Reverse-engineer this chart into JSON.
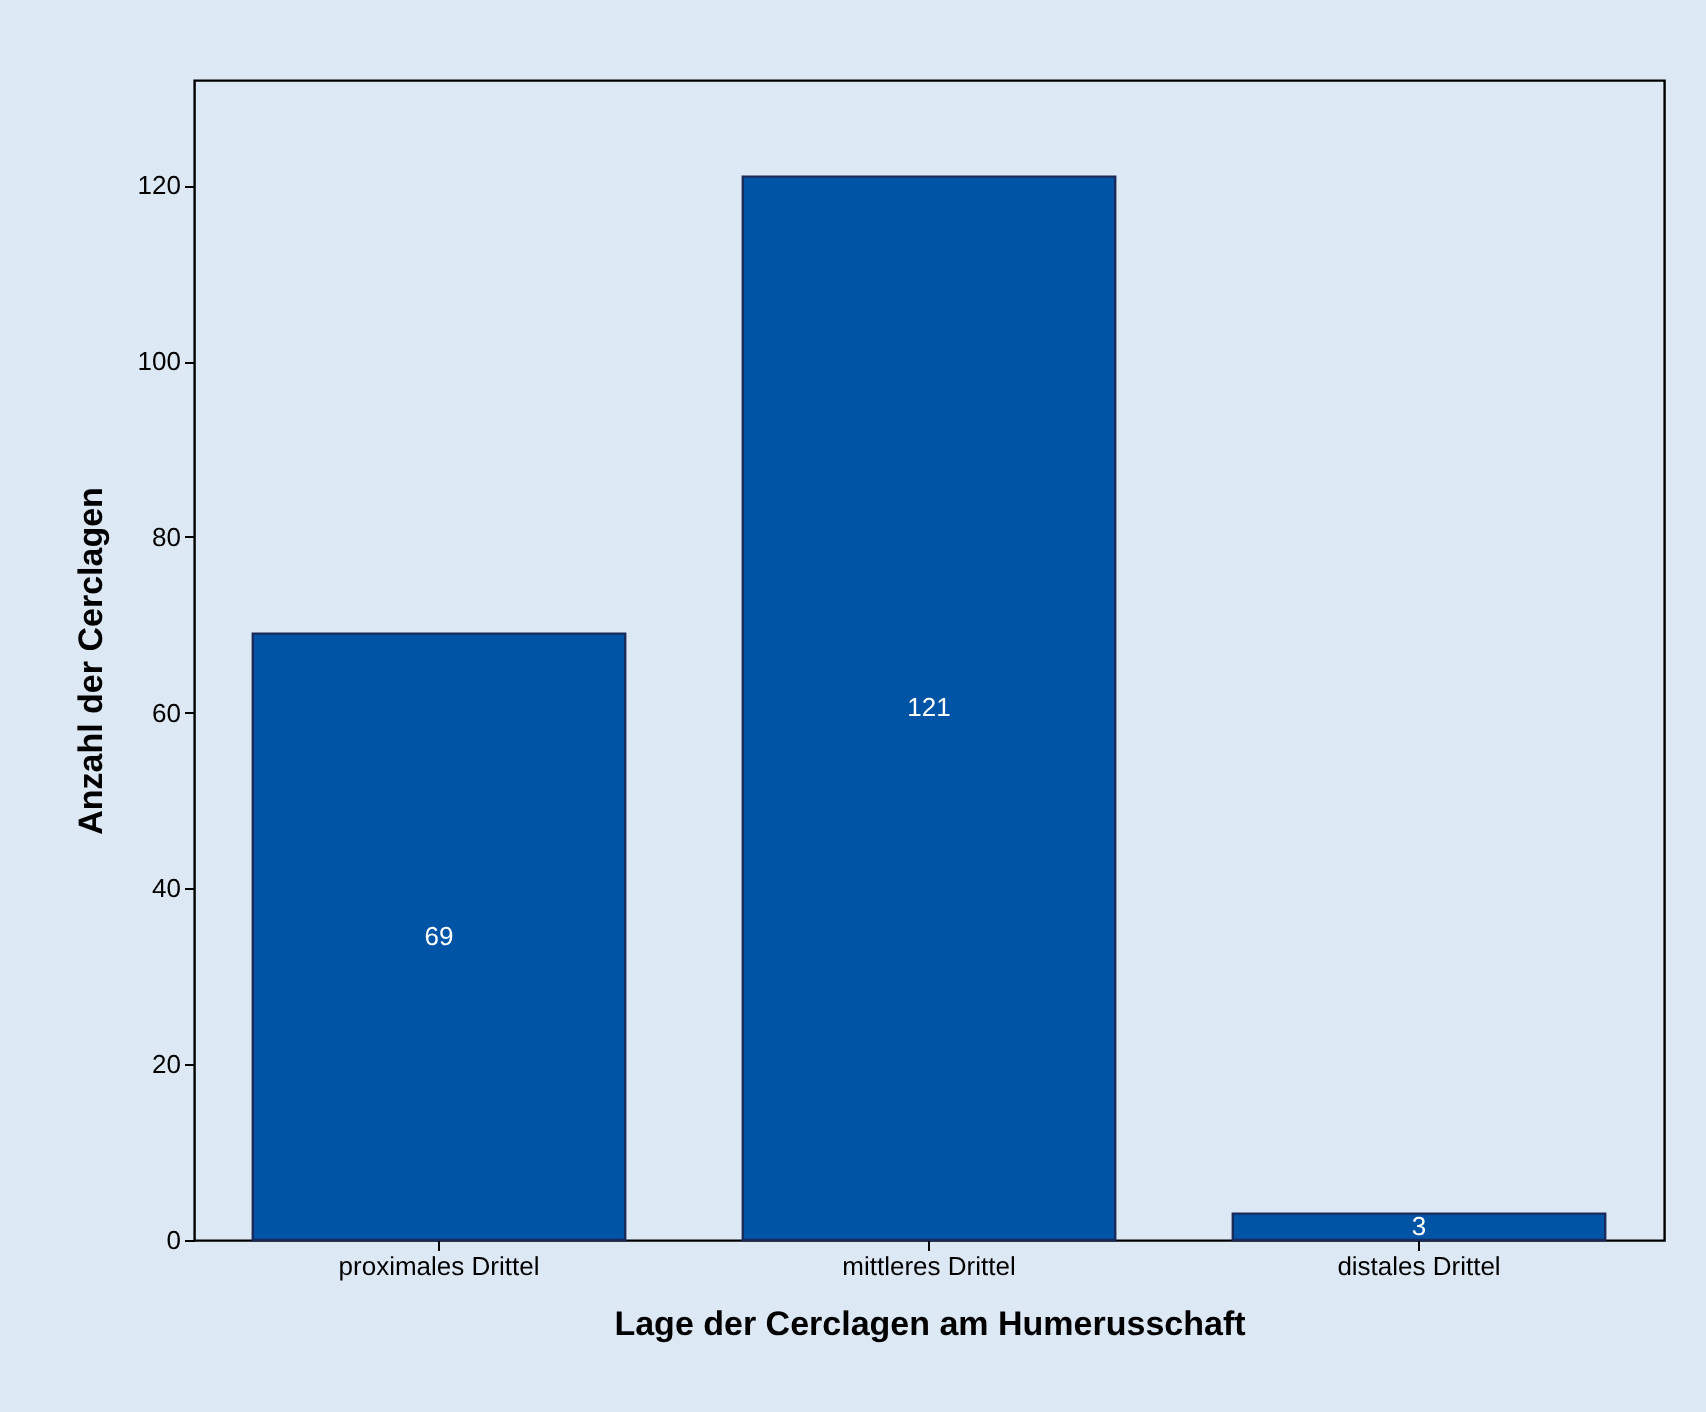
{
  "chart_data": {
    "type": "bar",
    "xlabel": "Lage der Cerclagen am Humerusschaft",
    "ylabel": "Anzahl der Cerclagen",
    "categories": [
      "proximales Drittel",
      "mittleres Drittel",
      "distales Drittel"
    ],
    "values": [
      69,
      121,
      3
    ],
    "color": "#0054a6",
    "ylim": [
      0,
      132
    ],
    "yticks": [
      0,
      20,
      40,
      60,
      80,
      100,
      120
    ],
    "grid": false,
    "data_labels": true
  }
}
